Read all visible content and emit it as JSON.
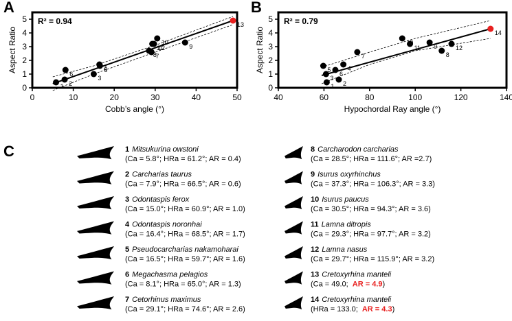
{
  "chart_data": [
    {
      "type": "scatter",
      "panel_label": "A",
      "annotation": "R² = 0.94",
      "xlabel": "Cobb’s angle (°)",
      "ylabel": "Aspect Ratio",
      "xlim": [
        0,
        50
      ],
      "ylim": [
        0,
        5.5
      ],
      "xticks": [
        0,
        10,
        20,
        30,
        40,
        50
      ],
      "yticks": [
        0,
        1,
        2,
        3,
        4,
        5
      ],
      "series": [
        {
          "color": "#000000",
          "x": [
            5.8,
            7.9,
            15.0,
            16.4,
            16.5,
            8.1,
            29.1,
            28.5,
            37.3,
            30.5,
            29.3,
            29.7
          ],
          "values": [
            0.4,
            0.6,
            1.0,
            1.7,
            1.6,
            1.3,
            2.6,
            2.7,
            3.3,
            3.6,
            3.2,
            3.2
          ],
          "labels": [
            "1",
            "2",
            "3",
            "4",
            "5",
            "6",
            "7",
            "8",
            "9",
            "10",
            "11",
            "12"
          ]
        },
        {
          "color": "#e8201f",
          "x": [
            49.0
          ],
          "values": [
            4.9
          ],
          "labels": [
            "13"
          ]
        }
      ],
      "fit": {
        "x": [
          5,
          49
        ],
        "y": [
          0.3,
          4.9
        ]
      },
      "ci_upper": {
        "x": [
          5,
          15,
          30,
          49
        ],
        "y": [
          0.8,
          1.6,
          3.1,
          5.2
        ]
      },
      "ci_lower": {
        "x": [
          5,
          15,
          30,
          49
        ],
        "y": [
          -0.2,
          1.0,
          2.6,
          4.6
        ]
      }
    },
    {
      "type": "scatter",
      "panel_label": "B",
      "annotation": "R² = 0.79",
      "xlabel": "Hypochordal Ray angle (°)",
      "ylabel": "Aspect Ratio",
      "xlim": [
        40,
        140
      ],
      "ylim": [
        0,
        5.5
      ],
      "xticks": [
        40,
        60,
        80,
        100,
        120,
        140
      ],
      "yticks": [
        0,
        1,
        2,
        3,
        4,
        5
      ],
      "series": [
        {
          "color": "#000000",
          "x": [
            61.2,
            66.5,
            60.9,
            68.5,
            59.7,
            65.0,
            74.6,
            111.6,
            106.3,
            94.3,
            97.7,
            115.9
          ],
          "values": [
            0.4,
            0.6,
            1.0,
            1.7,
            1.6,
            1.3,
            2.6,
            2.7,
            3.3,
            3.6,
            3.2,
            3.2
          ],
          "labels": [
            "1",
            "2",
            "3",
            "4",
            "5",
            "6",
            "7",
            "8",
            "9",
            "10",
            "11",
            "12"
          ]
        },
        {
          "color": "#e8201f",
          "x": [
            133.0
          ],
          "values": [
            4.3
          ],
          "labels": [
            "14"
          ]
        }
      ],
      "fit": {
        "x": [
          59,
          133
        ],
        "y": [
          0.9,
          4.3
        ]
      },
      "ci_upper": {
        "x": [
          59,
          80,
          100,
          133
        ],
        "y": [
          1.5,
          2.6,
          3.6,
          4.9
        ]
      },
      "ci_lower": {
        "x": [
          59,
          80,
          100,
          133
        ],
        "y": [
          0.3,
          1.7,
          2.7,
          3.6
        ]
      }
    }
  ],
  "panel_c": {
    "label": "C",
    "entries": [
      {
        "number": "1",
        "name": "Mitsukurina owstoni",
        "details": "(Ca = 5.8°; HRa = 61.2°; AR = 0.4)"
      },
      {
        "number": "2",
        "name": "Carcharias taurus",
        "details": "(Ca = 7.9°; HRa = 66.5°; AR = 0.6)"
      },
      {
        "number": "3",
        "name": "Odontaspis ferox",
        "details": "(Ca = 15.0°; HRa = 60.9°; AR = 1.0)"
      },
      {
        "number": "4",
        "name": "Odontaspis noronhai",
        "details": "(Ca = 16.4°; HRa = 68.5°; AR = 1.7)"
      },
      {
        "number": "5",
        "name": "Pseudocarcharias nakamoharai",
        "details": "(Ca = 16.5°; HRa = 59.7°; AR = 1.6)"
      },
      {
        "number": "6",
        "name": "Megachasma pelagios",
        "details": "(Ca = 8.1°; HRa = 65.0°; AR = 1.3)"
      },
      {
        "number": "7",
        "name": "Cetorhinus maximus",
        "details": "(Ca = 29.1°; HRa = 74.6°; AR = 2.6)"
      },
      {
        "number": "8",
        "name": "Carcharodon carcharias",
        "details": "(Ca = 28.5°; HRa = 111.6°; AR =2.7)"
      },
      {
        "number": "9",
        "name": "Isurus oxyrhinchus",
        "details": "(Ca = 37.3°; HRa = 106.3°; AR = 3.3)"
      },
      {
        "number": "10",
        "name": "Isurus paucus",
        "details": "(Ca = 30.5°; HRa = 94.3°; AR = 3.6)"
      },
      {
        "number": "11",
        "name": "Lamna ditropis",
        "details": "(Ca = 29.3°; HRa = 97.7°; AR = 3.2)"
      },
      {
        "number": "12",
        "name": "Lamna nasus",
        "details": "(Ca = 29.7°; HRa = 115.9°; AR = 3.2)"
      },
      {
        "number": "13",
        "name": "Cretoxyrhina manteli",
        "details": "(Ca = 49.0; ",
        "highlight": "AR = 4.9",
        "details_end": ")"
      },
      {
        "number": "14",
        "name": "Cretoxyrhina manteli",
        "details": "(HRa = 133.0; ",
        "highlight": "AR = 4.3",
        "details_end": ")"
      }
    ]
  }
}
